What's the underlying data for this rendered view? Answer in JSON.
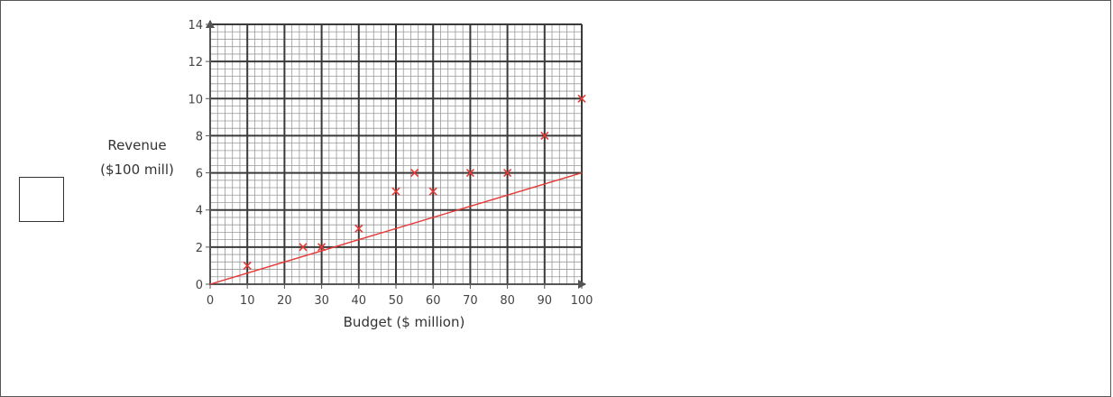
{
  "chart_data": {
    "type": "scatter",
    "title": "",
    "xlabel": "Budget ($ million)",
    "ylabel_lines": [
      "Revenue",
      "($100 mill)"
    ],
    "xlim": [
      0,
      100
    ],
    "ylim": [
      0,
      14
    ],
    "x_ticks": [
      0,
      10,
      20,
      30,
      40,
      50,
      60,
      70,
      80,
      90,
      100
    ],
    "y_ticks": [
      0,
      2,
      4,
      6,
      8,
      10,
      12,
      14
    ],
    "grid": true,
    "minor_grid_step": 2,
    "points": [
      {
        "x": 10,
        "y": 1
      },
      {
        "x": 25,
        "y": 2
      },
      {
        "x": 30,
        "y": 2
      },
      {
        "x": 40,
        "y": 3
      },
      {
        "x": 50,
        "y": 5
      },
      {
        "x": 55,
        "y": 6
      },
      {
        "x": 60,
        "y": 5
      },
      {
        "x": 70,
        "y": 6
      },
      {
        "x": 80,
        "y": 6
      },
      {
        "x": 90,
        "y": 8
      },
      {
        "x": 100,
        "y": 10
      }
    ],
    "line": {
      "x": [
        0,
        100
      ],
      "y": [
        0,
        6
      ]
    },
    "colors": {
      "points": "#e53935",
      "line": "#e53935",
      "major_grid": "#3a3a3a",
      "minor_grid": "#9a9a9a",
      "axis": "#555555"
    }
  }
}
